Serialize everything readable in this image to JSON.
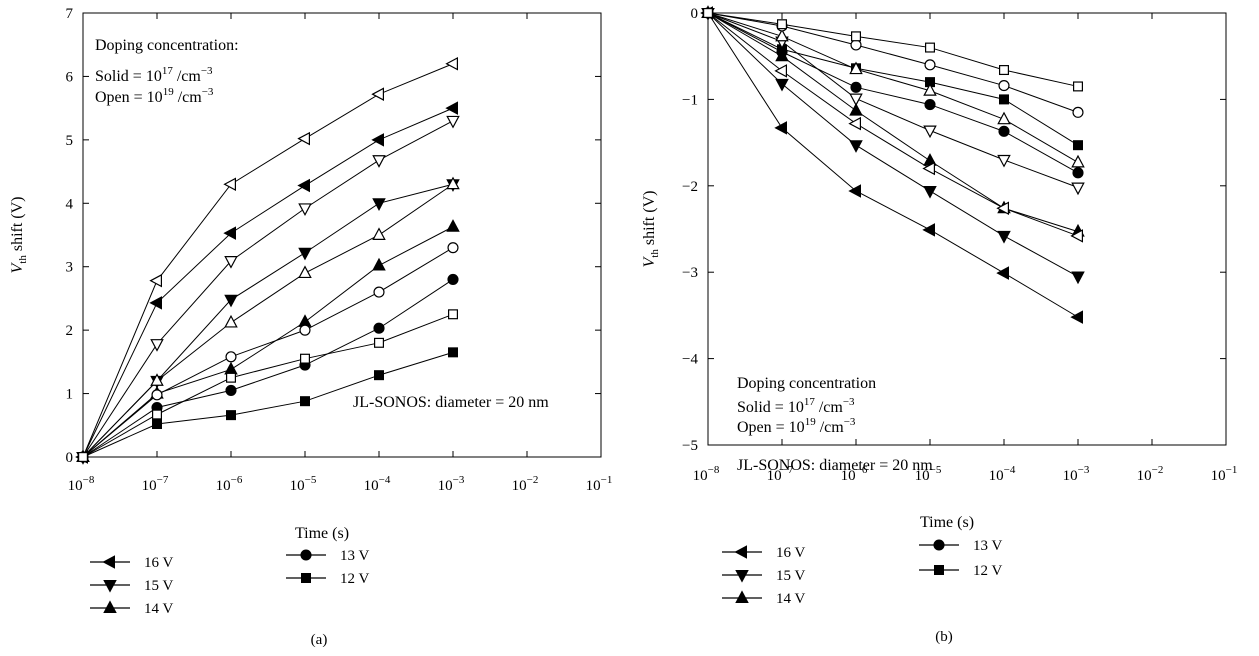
{
  "chart_data": [
    {
      "type": "line",
      "panel_label": "(a)",
      "xlabel": "Time (s)",
      "ylabel_main": "V",
      "ylabel_sub": "th",
      "ylabel_rest": " shift (V)",
      "x_scale": "log",
      "xlim": [
        1e-08,
        0.1
      ],
      "ylim": [
        0,
        7
      ],
      "x_ticks": [
        1e-08,
        1e-07,
        1e-06,
        1e-05,
        0.0001,
        0.001,
        0.01,
        0.1
      ],
      "x_tick_exponents": [
        "−8",
        "−7",
        "−6",
        "−5",
        "−4",
        "−3",
        "−2",
        "−1"
      ],
      "y_ticks": [
        0,
        1,
        2,
        3,
        4,
        5,
        6,
        7
      ],
      "y_tick_labels": [
        "0",
        "1",
        "2",
        "3",
        "4",
        "5",
        "6",
        "7"
      ],
      "annotations": {
        "doping_title": "Doping concentration:",
        "solid_text": "Solid = 10",
        "solid_exp": "17",
        "solid_unit": " /cm",
        "solid_unit_exp": "−3",
        "open_text": "Open = 10",
        "open_exp": "19",
        "open_unit": " /cm",
        "open_unit_exp": "−3",
        "device": "JL-SONOS: diameter = 20 nm"
      },
      "x": [
        1e-08,
        1e-07,
        1e-06,
        1e-05,
        0.0001,
        0.001
      ],
      "series": [
        {
          "name": "16 V",
          "marker": "tri-left",
          "fill": "solid",
          "values": [
            0,
            2.43,
            3.53,
            4.28,
            5.0,
            5.5
          ]
        },
        {
          "name": "15 V",
          "marker": "tri-down",
          "fill": "solid",
          "values": [
            0,
            1.2,
            2.48,
            3.22,
            4.0,
            4.3
          ]
        },
        {
          "name": "14 V",
          "marker": "tri-up",
          "fill": "solid",
          "values": [
            0,
            1.0,
            1.38,
            2.13,
            3.02,
            3.63
          ]
        },
        {
          "name": "13 V",
          "marker": "circle",
          "fill": "solid",
          "values": [
            0,
            0.78,
            1.05,
            1.45,
            2.03,
            2.8
          ]
        },
        {
          "name": "12 V",
          "marker": "square",
          "fill": "solid",
          "values": [
            0,
            0.52,
            0.66,
            0.88,
            1.29,
            1.65
          ]
        },
        {
          "marker": "tri-left",
          "fill": "open",
          "values": [
            0,
            2.78,
            4.3,
            5.02,
            5.72,
            6.2
          ]
        },
        {
          "marker": "tri-down",
          "fill": "open",
          "values": [
            0,
            1.78,
            3.09,
            3.92,
            4.68,
            5.3
          ]
        },
        {
          "marker": "tri-up",
          "fill": "open",
          "values": [
            0,
            1.2,
            2.12,
            2.9,
            3.5,
            4.3
          ]
        },
        {
          "marker": "circle",
          "fill": "open",
          "values": [
            0,
            0.98,
            1.58,
            2.0,
            2.6,
            3.3
          ]
        },
        {
          "marker": "square",
          "fill": "open",
          "values": [
            0,
            0.67,
            1.25,
            1.55,
            1.8,
            2.25
          ]
        }
      ]
    },
    {
      "type": "line",
      "panel_label": "(b)",
      "xlabel": "Time (s)",
      "ylabel_main": "V",
      "ylabel_sub": "th",
      "ylabel_rest": " shift (V)",
      "x_scale": "log",
      "xlim": [
        1e-08,
        0.1
      ],
      "ylim": [
        -5,
        0
      ],
      "x_ticks": [
        1e-08,
        1e-07,
        1e-06,
        1e-05,
        0.0001,
        0.001,
        0.01,
        0.1
      ],
      "x_tick_exponents": [
        "−8",
        "−7",
        "−6",
        "−5",
        "−4",
        "−3",
        "−2",
        "−1"
      ],
      "y_ticks": [
        0,
        -1,
        -2,
        -3,
        -4,
        -5
      ],
      "y_tick_labels": [
        "0",
        "−1",
        "−2",
        "−3",
        "−4",
        "−5"
      ],
      "annotations": {
        "doping_title": "Doping concentration",
        "solid_text": "Solid = 10",
        "solid_exp": "17",
        "solid_unit": " /cm",
        "solid_unit_exp": "−3",
        "open_text": "Open = 10",
        "open_exp": "19",
        "open_unit": " /cm",
        "open_unit_exp": "−3",
        "device": "JL-SONOS: diameter = 20 nm"
      },
      "x": [
        1e-08,
        1e-07,
        1e-06,
        1e-05,
        0.0001,
        0.001
      ],
      "series": [
        {
          "name": "16 V",
          "marker": "tri-left",
          "fill": "solid",
          "values": [
            0,
            -1.33,
            -2.06,
            -2.51,
            -3.01,
            -3.52
          ]
        },
        {
          "name": "15 V",
          "marker": "tri-down",
          "fill": "solid",
          "values": [
            0,
            -0.82,
            -1.53,
            -2.06,
            -2.58,
            -3.05
          ]
        },
        {
          "name": "14 V",
          "marker": "tri-up",
          "fill": "solid",
          "values": [
            0,
            -0.5,
            -1.13,
            -1.71,
            -2.26,
            -2.53
          ]
        },
        {
          "name": "13 V",
          "marker": "circle",
          "fill": "solid",
          "values": [
            0,
            -0.45,
            -0.86,
            -1.06,
            -1.37,
            -1.85
          ]
        },
        {
          "name": "12 V",
          "marker": "square",
          "fill": "solid",
          "values": [
            0,
            -0.42,
            -0.64,
            -0.8,
            -1.0,
            -1.53
          ]
        },
        {
          "marker": "tri-left",
          "fill": "open",
          "values": [
            0,
            -0.67,
            -1.28,
            -1.8,
            -2.26,
            -2.58
          ]
        },
        {
          "marker": "tri-down",
          "fill": "open",
          "values": [
            0,
            -0.33,
            -0.99,
            -1.36,
            -1.7,
            -2.02
          ]
        },
        {
          "marker": "tri-up",
          "fill": "open",
          "values": [
            0,
            -0.27,
            -0.65,
            -0.9,
            -1.23,
            -1.73
          ]
        },
        {
          "marker": "circle",
          "fill": "open",
          "values": [
            0,
            -0.15,
            -0.37,
            -0.6,
            -0.84,
            -1.15
          ]
        },
        {
          "marker": "square",
          "fill": "open",
          "values": [
            0,
            -0.13,
            -0.27,
            -0.4,
            -0.66,
            -0.85
          ]
        }
      ]
    }
  ]
}
